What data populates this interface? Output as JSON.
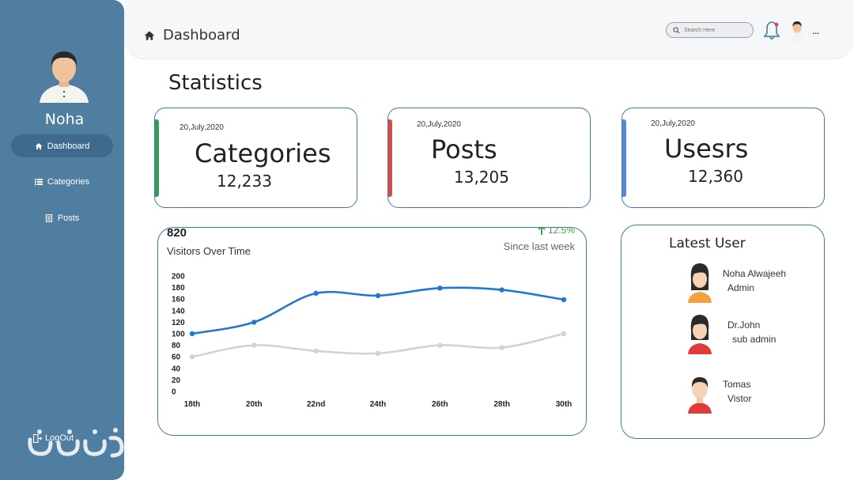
{
  "sidebar": {
    "user_name": "Noha",
    "items": [
      {
        "label": "Dashboard",
        "icon": "home-icon",
        "active": true
      },
      {
        "label": "Categories",
        "icon": "list-icon",
        "active": false
      },
      {
        "label": "Posts",
        "icon": "posts-icon",
        "active": false
      }
    ],
    "logout_label": "LogOut",
    "color": "#4f7ea1"
  },
  "header": {
    "title": "Dashboard",
    "search_placeholder": "Search Here",
    "more_label": "..."
  },
  "page_title": "Statistics",
  "stats": [
    {
      "date": "20,July,2020",
      "label": "Categories",
      "value": "12,233",
      "accent": "#3a9a5c"
    },
    {
      "date": "20,July,2020",
      "label": "Posts",
      "value": "13,205",
      "accent": "#d94a4a"
    },
    {
      "date": "20,July,2020",
      "label": "Usesrs",
      "value": "12,360",
      "accent": "#5b86d6"
    }
  ],
  "visitors": {
    "total": "820",
    "caption": "Visitors Over Time",
    "change": "12.5%",
    "since": "Since last week"
  },
  "chart_data": {
    "type": "line",
    "categories": [
      "18th",
      "20th",
      "22nd",
      "24th",
      "26th",
      "28th",
      "30th"
    ],
    "series": [
      {
        "color": "#1f78d1",
        "values": [
          100,
          120,
          170,
          166,
          179,
          176,
          159
        ]
      },
      {
        "color": "#cfd3d6",
        "values": [
          60,
          80,
          70,
          66,
          80,
          76,
          100
        ]
      }
    ],
    "yticks": [
      0,
      20,
      40,
      60,
      80,
      100,
      120,
      140,
      160,
      180,
      200
    ],
    "ylim": [
      0,
      200
    ],
    "grid": false
  },
  "latest_users": {
    "title": "Latest User",
    "users": [
      {
        "name": "Noha Alwajeeh",
        "role": "Admin",
        "gender": "female"
      },
      {
        "name": "Dr.John",
        "role": "sub admin",
        "gender": "female"
      },
      {
        "name": "Tomas",
        "role": "Vistor",
        "gender": "male"
      }
    ]
  }
}
